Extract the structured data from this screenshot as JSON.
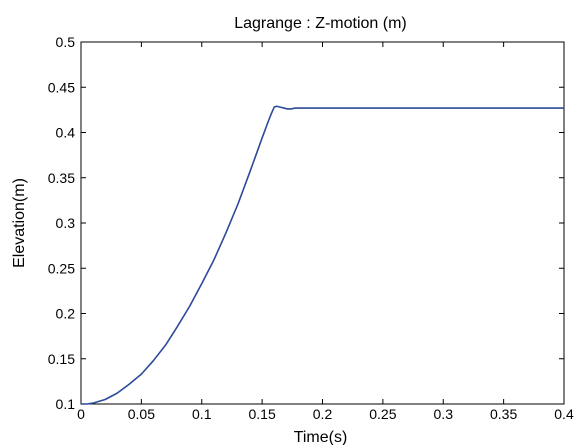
{
  "chart_data": {
    "type": "line",
    "title": "Lagrange : Z-motion (m)",
    "xlabel": "Time(s)",
    "ylabel": "Elevation(m)",
    "xlim": [
      0,
      0.4
    ],
    "ylim": [
      0.1,
      0.5
    ],
    "xticks": [
      "0",
      "0.05",
      "0.1",
      "0.15",
      "0.2",
      "0.25",
      "0.3",
      "0.35",
      "0.4"
    ],
    "yticks": [
      "0.1",
      "0.15",
      "0.2",
      "0.25",
      "0.3",
      "0.35",
      "0.4",
      "0.45",
      "0.5"
    ],
    "grid": false,
    "line_color": "#2b4a9a",
    "series": [
      {
        "x": [
          0,
          0.005,
          0.01,
          0.02,
          0.03,
          0.04,
          0.05,
          0.06,
          0.07,
          0.08,
          0.09,
          0.1,
          0.11,
          0.12,
          0.13,
          0.14,
          0.15,
          0.155,
          0.158,
          0.16,
          0.162,
          0.165,
          0.168,
          0.171,
          0.174,
          0.177,
          0.18,
          0.2,
          0.25,
          0.3,
          0.35,
          0.4
        ],
        "y": [
          0.1,
          0.1,
          0.101,
          0.105,
          0.112,
          0.122,
          0.133,
          0.148,
          0.165,
          0.186,
          0.208,
          0.233,
          0.259,
          0.289,
          0.321,
          0.357,
          0.394,
          0.412,
          0.422,
          0.428,
          0.429,
          0.428,
          0.427,
          0.426,
          0.426,
          0.427,
          0.427,
          0.427,
          0.427,
          0.427,
          0.427,
          0.427
        ]
      }
    ]
  }
}
